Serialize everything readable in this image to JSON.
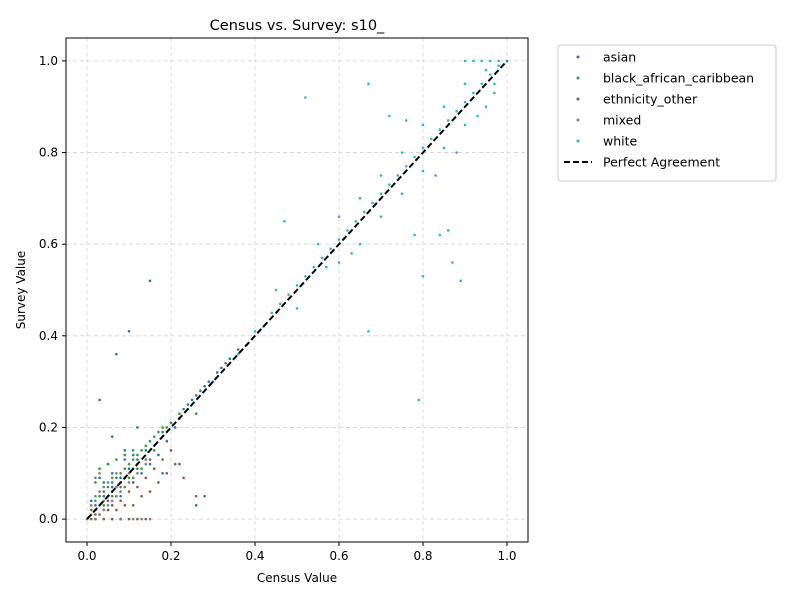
{
  "chart_data": {
    "type": "scatter",
    "title": "Census vs. Survey: s10_",
    "xlabel": "Census Value",
    "ylabel": "Survey Value",
    "xlim": [
      -0.05,
      1.05
    ],
    "ylim": [
      -0.05,
      1.05
    ],
    "xticks": [
      "0.0",
      "0.2",
      "0.4",
      "0.6",
      "0.8",
      "1.0"
    ],
    "yticks": [
      "0.0",
      "0.2",
      "0.4",
      "0.6",
      "0.8",
      "1.0"
    ],
    "grid": true,
    "legend_position": "outside-top-right",
    "series": [
      {
        "name": "asian",
        "color": "#1f77b4",
        "points": [
          [
            0.02,
            0.03
          ],
          [
            0.04,
            0.05
          ],
          [
            0.06,
            0.07
          ],
          [
            0.08,
            0.09
          ],
          [
            0.1,
            0.11
          ],
          [
            0.12,
            0.13
          ],
          [
            0.14,
            0.15
          ],
          [
            0.16,
            0.16
          ],
          [
            0.18,
            0.19
          ],
          [
            0.2,
            0.21
          ],
          [
            0.22,
            0.22
          ],
          [
            0.24,
            0.25
          ],
          [
            0.26,
            0.27
          ],
          [
            0.28,
            0.29
          ],
          [
            0.3,
            0.3
          ],
          [
            0.32,
            0.33
          ],
          [
            0.34,
            0.35
          ],
          [
            0.36,
            0.37
          ],
          [
            0.05,
            0.12
          ],
          [
            0.03,
            0.26
          ],
          [
            0.07,
            0.36
          ],
          [
            0.1,
            0.41
          ],
          [
            0.15,
            0.52
          ],
          [
            0.06,
            0.18
          ],
          [
            0.09,
            0.15
          ],
          [
            0.12,
            0.2
          ],
          [
            0.18,
            0.1
          ],
          [
            0.22,
            0.12
          ],
          [
            0.26,
            0.03
          ],
          [
            0.28,
            0.05
          ],
          [
            0.03,
            0.09
          ],
          [
            0.05,
            0.02
          ],
          [
            0.08,
            0.05
          ],
          [
            0.11,
            0.08
          ],
          [
            0.13,
            0.1
          ],
          [
            0.15,
            0.12
          ],
          [
            0.17,
            0.14
          ],
          [
            0.19,
            0.17
          ],
          [
            0.21,
            0.2
          ],
          [
            0.23,
            0.24
          ],
          [
            0.25,
            0.26
          ],
          [
            0.27,
            0.28
          ],
          [
            0.29,
            0.3
          ],
          [
            0.31,
            0.32
          ],
          [
            0.33,
            0.34
          ],
          [
            0.01,
            0.04
          ],
          [
            0.04,
            0.08
          ],
          [
            0.06,
            0.1
          ],
          [
            0.09,
            0.13
          ],
          [
            0.11,
            0.14
          ]
        ]
      },
      {
        "name": "black_african_caribbean",
        "color": "#2ca02c",
        "points": [
          [
            0.01,
            0.02
          ],
          [
            0.02,
            0.04
          ],
          [
            0.03,
            0.05
          ],
          [
            0.04,
            0.06
          ],
          [
            0.05,
            0.07
          ],
          [
            0.06,
            0.08
          ],
          [
            0.07,
            0.09
          ],
          [
            0.08,
            0.1
          ],
          [
            0.09,
            0.11
          ],
          [
            0.1,
            0.12
          ],
          [
            0.11,
            0.13
          ],
          [
            0.12,
            0.14
          ],
          [
            0.13,
            0.15
          ],
          [
            0.14,
            0.16
          ],
          [
            0.15,
            0.17
          ],
          [
            0.16,
            0.18
          ],
          [
            0.17,
            0.19
          ],
          [
            0.18,
            0.2
          ],
          [
            0.19,
            0.2
          ],
          [
            0.2,
            0.21
          ],
          [
            0.22,
            0.23
          ],
          [
            0.02,
            0.08
          ],
          [
            0.03,
            0.11
          ],
          [
            0.05,
            0.12
          ],
          [
            0.07,
            0.13
          ],
          [
            0.09,
            0.14
          ],
          [
            0.11,
            0.15
          ],
          [
            0.04,
            0.03
          ],
          [
            0.06,
            0.05
          ],
          [
            0.08,
            0.07
          ],
          [
            0.1,
            0.09
          ],
          [
            0.12,
            0.11
          ],
          [
            0.14,
            0.13
          ],
          [
            0.16,
            0.15
          ],
          [
            0.24,
            0.24
          ],
          [
            0.26,
            0.23
          ]
        ]
      },
      {
        "name": "ethnicity_other",
        "color": "#8c564b",
        "points": [
          [
            0.01,
            0.0
          ],
          [
            0.02,
            0.0
          ],
          [
            0.04,
            0.0
          ],
          [
            0.06,
            0.0
          ],
          [
            0.08,
            0.0
          ],
          [
            0.1,
            0.0
          ],
          [
            0.12,
            0.0
          ],
          [
            0.14,
            0.0
          ],
          [
            0.03,
            0.01
          ],
          [
            0.05,
            0.02
          ],
          [
            0.07,
            0.02
          ],
          [
            0.09,
            0.03
          ],
          [
            0.11,
            0.03
          ],
          [
            0.13,
            0.05
          ],
          [
            0.15,
            0.06
          ],
          [
            0.17,
            0.08
          ],
          [
            0.19,
            0.1
          ],
          [
            0.21,
            0.12
          ],
          [
            0.23,
            0.09
          ],
          [
            0.26,
            0.05
          ],
          [
            0.04,
            0.02
          ],
          [
            0.06,
            0.03
          ],
          [
            0.08,
            0.04
          ],
          [
            0.1,
            0.06
          ],
          [
            0.12,
            0.07
          ],
          [
            0.14,
            0.09
          ],
          [
            0.16,
            0.11
          ],
          [
            0.18,
            0.13
          ],
          [
            0.2,
            0.15
          ],
          [
            0.02,
            0.01
          ],
          [
            0.05,
            0.04
          ],
          [
            0.07,
            0.05
          ],
          [
            0.09,
            0.07
          ],
          [
            0.11,
            0.09
          ],
          [
            0.13,
            0.11
          ],
          [
            0.15,
            0.13
          ]
        ]
      },
      {
        "name": "mixed",
        "color": "#7f7f7f",
        "points": [
          [
            0.0,
            0.0
          ],
          [
            0.01,
            0.01
          ],
          [
            0.02,
            0.02
          ],
          [
            0.03,
            0.03
          ],
          [
            0.04,
            0.04
          ],
          [
            0.05,
            0.05
          ],
          [
            0.06,
            0.06
          ],
          [
            0.07,
            0.07
          ],
          [
            0.08,
            0.08
          ],
          [
            0.09,
            0.09
          ],
          [
            0.1,
            0.1
          ],
          [
            0.11,
            0.11
          ],
          [
            0.12,
            0.12
          ],
          [
            0.01,
            0.03
          ],
          [
            0.02,
            0.05
          ],
          [
            0.03,
            0.06
          ],
          [
            0.04,
            0.07
          ],
          [
            0.05,
            0.08
          ],
          [
            0.06,
            0.09
          ],
          [
            0.07,
            0.1
          ],
          [
            0.02,
            0.0
          ],
          [
            0.03,
            0.01
          ],
          [
            0.04,
            0.02
          ],
          [
            0.05,
            0.03
          ],
          [
            0.06,
            0.04
          ],
          [
            0.07,
            0.05
          ],
          [
            0.08,
            0.06
          ],
          [
            0.09,
            0.07
          ],
          [
            0.1,
            0.08
          ],
          [
            0.11,
            0.09
          ],
          [
            0.12,
            0.1
          ],
          [
            0.13,
            0.11
          ],
          [
            0.14,
            0.12
          ],
          [
            0.02,
            0.09
          ],
          [
            0.03,
            0.1
          ],
          [
            0.08,
            0.0
          ],
          [
            0.11,
            0.0
          ],
          [
            0.13,
            0.0
          ],
          [
            0.15,
            0.0
          ]
        ]
      },
      {
        "name": "white",
        "color": "#17becf",
        "points": [
          [
            0.36,
            0.36
          ],
          [
            0.38,
            0.38
          ],
          [
            0.4,
            0.41
          ],
          [
            0.42,
            0.42
          ],
          [
            0.44,
            0.45
          ],
          [
            0.46,
            0.47
          ],
          [
            0.48,
            0.49
          ],
          [
            0.5,
            0.51
          ],
          [
            0.52,
            0.53
          ],
          [
            0.54,
            0.55
          ],
          [
            0.56,
            0.57
          ],
          [
            0.58,
            0.59
          ],
          [
            0.6,
            0.61
          ],
          [
            0.62,
            0.63
          ],
          [
            0.64,
            0.65
          ],
          [
            0.66,
            0.67
          ],
          [
            0.68,
            0.69
          ],
          [
            0.7,
            0.71
          ],
          [
            0.72,
            0.73
          ],
          [
            0.74,
            0.75
          ],
          [
            0.76,
            0.77
          ],
          [
            0.78,
            0.79
          ],
          [
            0.8,
            0.81
          ],
          [
            0.82,
            0.83
          ],
          [
            0.84,
            0.85
          ],
          [
            0.86,
            0.87
          ],
          [
            0.88,
            0.89
          ],
          [
            0.9,
            0.91
          ],
          [
            0.92,
            0.93
          ],
          [
            0.94,
            0.95
          ],
          [
            0.96,
            0.97
          ],
          [
            0.98,
            0.99
          ],
          [
            1.0,
            1.0
          ],
          [
            0.55,
            0.6
          ],
          [
            0.6,
            0.66
          ],
          [
            0.65,
            0.7
          ],
          [
            0.7,
            0.75
          ],
          [
            0.75,
            0.8
          ],
          [
            0.8,
            0.86
          ],
          [
            0.85,
            0.9
          ],
          [
            0.9,
            0.95
          ],
          [
            0.95,
            0.98
          ],
          [
            0.6,
            0.56
          ],
          [
            0.65,
            0.6
          ],
          [
            0.7,
            0.66
          ],
          [
            0.75,
            0.71
          ],
          [
            0.8,
            0.76
          ],
          [
            0.85,
            0.81
          ],
          [
            0.9,
            0.86
          ],
          [
            0.95,
            0.9
          ],
          [
            0.97,
            0.93
          ],
          [
            0.9,
            1.0
          ],
          [
            0.92,
            1.0
          ],
          [
            0.94,
            1.0
          ],
          [
            0.96,
            1.0
          ],
          [
            0.98,
            1.0
          ],
          [
            0.52,
            0.92
          ],
          [
            0.67,
            0.95
          ],
          [
            0.47,
            0.65
          ],
          [
            0.67,
            0.41
          ],
          [
            0.79,
            0.26
          ],
          [
            0.8,
            0.53
          ],
          [
            0.89,
            0.52
          ],
          [
            0.87,
            0.56
          ],
          [
            0.72,
            0.88
          ],
          [
            0.76,
            0.87
          ],
          [
            0.84,
            0.62
          ],
          [
            0.78,
            0.62
          ],
          [
            0.86,
            0.63
          ],
          [
            0.45,
            0.5
          ],
          [
            0.5,
            0.46
          ],
          [
            0.57,
            0.55
          ],
          [
            0.63,
            0.58
          ],
          [
            0.83,
            0.75
          ],
          [
            0.88,
            0.8
          ],
          [
            0.93,
            0.88
          ],
          [
            0.97,
            0.95
          ]
        ]
      }
    ],
    "reference_line": {
      "name": "Perfect Agreement",
      "color": "#000000",
      "x": [
        0.0,
        1.0
      ],
      "y": [
        0.0,
        1.0
      ]
    }
  }
}
